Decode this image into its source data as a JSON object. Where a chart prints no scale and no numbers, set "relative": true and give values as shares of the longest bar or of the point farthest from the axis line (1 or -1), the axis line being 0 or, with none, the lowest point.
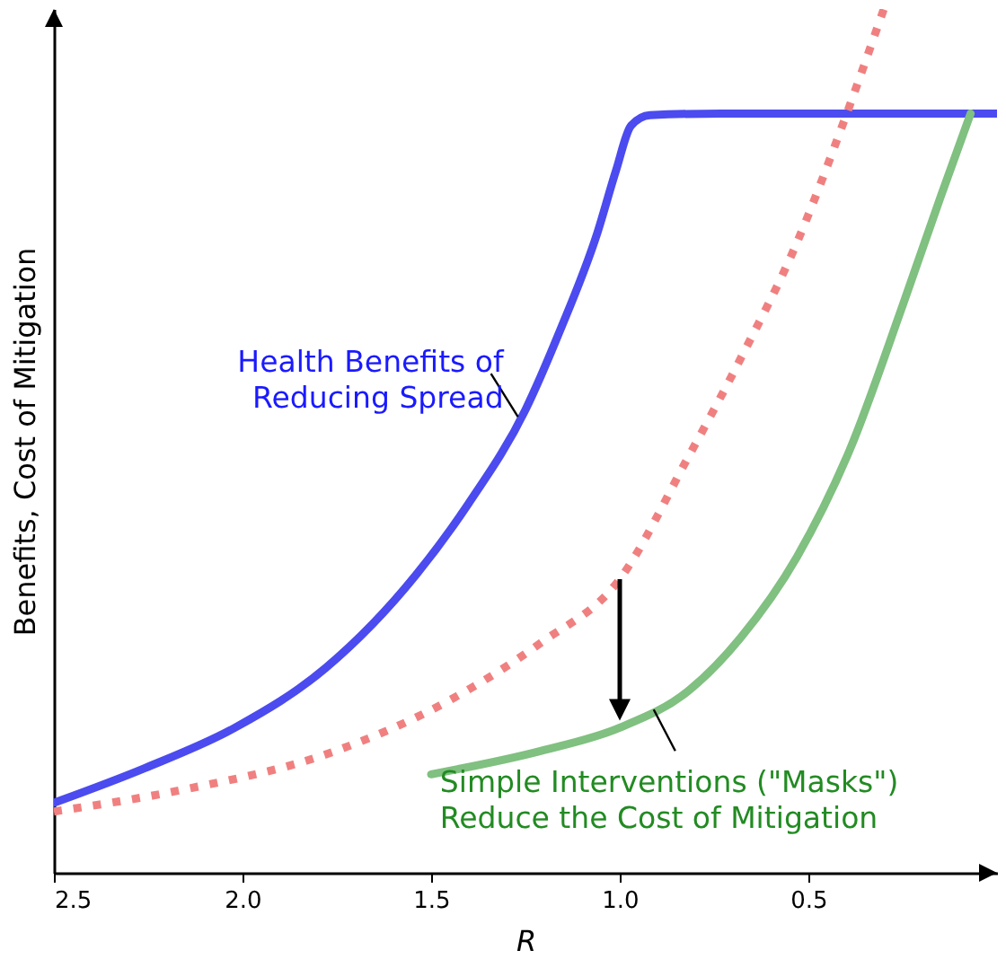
{
  "chart_data": {
    "type": "line",
    "relative": true,
    "xlabel": "R",
    "ylabel": "Benefits, Cost of Mitigation",
    "xlim": [
      2.5,
      0
    ],
    "xticks": [
      {
        "value": 2.5,
        "label": "2.5"
      },
      {
        "value": 2,
        "label": "2.0"
      },
      {
        "value": 1.5,
        "label": "1.5"
      },
      {
        "value": 1,
        "label": "1.0"
      },
      {
        "value": 0.5,
        "label": "0.5"
      }
    ],
    "marker": "none",
    "series": [
      {
        "color": "#4b4bf0",
        "line_style": "solid",
        "x": [
          2.5,
          2.26,
          2.02,
          1.78,
          1.54,
          1.4,
          1.25,
          1.16,
          1.06,
          1.01,
          0.97,
          0.92,
          0.73,
          0
        ],
        "values": [
          0.081,
          0.121,
          0.168,
          0.237,
          0.345,
          0.428,
          0.536,
          0.626,
          0.74,
          0.813,
          0.865,
          0.877,
          0.879,
          0.879
        ]
      },
      {
        "color": "#f08080",
        "line_style": "dotted",
        "x": [
          2.5,
          2.16,
          1.78,
          1.45,
          1.21,
          1.0,
          0.82,
          0.68,
          0.53,
          0.41,
          0.3
        ],
        "values": [
          0.071,
          0.096,
          0.137,
          0.2,
          0.266,
          0.34,
          0.48,
          0.595,
          0.73,
          0.865,
          1.0
        ]
      },
      {
        "color": "#80c080",
        "line_style": "solid",
        "x": [
          1.5,
          1.21,
          1.0,
          0.82,
          0.68,
          0.53,
          0.39,
          0.25,
          0.15,
          0.07
        ],
        "values": [
          0.114,
          0.141,
          0.168,
          0.21,
          0.272,
          0.366,
          0.49,
          0.657,
          0.782,
          0.879
        ]
      }
    ],
    "annotations": [
      {
        "text": "Health Benefits of\nReducing Spread",
        "x": 1.27,
        "y": 0.528
      },
      {
        "text": "Simple Interventions (\"Masks\")\nReduce the Cost of Mitigation",
        "x": 0.91,
        "y": 0.189
      }
    ]
  }
}
